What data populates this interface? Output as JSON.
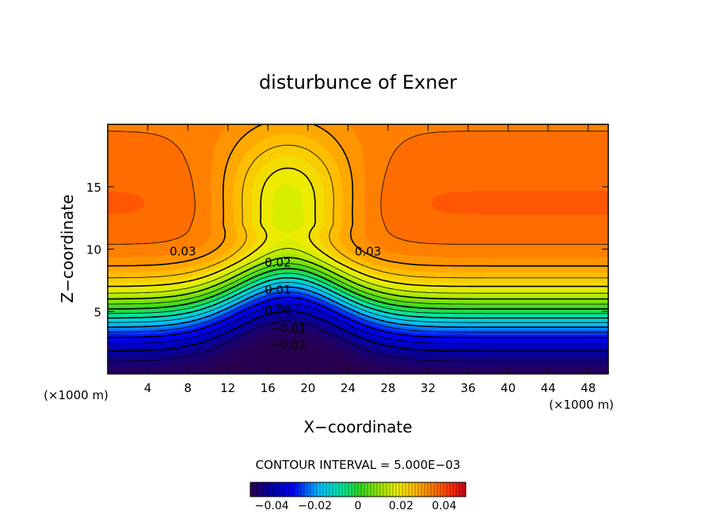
{
  "chart_data": {
    "type": "heatmap",
    "title": "disturbunce of Exner",
    "xlabel": "X−coordinate",
    "ylabel": "Z−coordinate",
    "x_unit": "(×1000 m)",
    "y_unit": "(×1000 m)",
    "xlim": [
      0,
      50
    ],
    "ylim": [
      0,
      20
    ],
    "x_ticks": [
      "4",
      "8",
      "12",
      "16",
      "20",
      "24",
      "28",
      "32",
      "36",
      "40",
      "44",
      "48"
    ],
    "x_tick_values": [
      4,
      8,
      12,
      16,
      20,
      24,
      28,
      32,
      36,
      40,
      44,
      48
    ],
    "y_ticks": [
      "5",
      "10",
      "15"
    ],
    "y_tick_values": [
      5,
      10,
      15
    ],
    "contour_interval_text": "CONTOUR INTERVAL = 5.000E−03",
    "contour_labels": [
      {
        "text": "0.03",
        "x": 7.5,
        "z": 9.5
      },
      {
        "text": "0.03",
        "x": 26.0,
        "z": 9.5
      },
      {
        "text": "0.02",
        "x": 17.0,
        "z": 8.6
      },
      {
        "text": "0.01",
        "x": 17.0,
        "z": 6.4
      },
      {
        "text": "0.00",
        "x": 17.0,
        "z": 4.8
      },
      {
        "text": "−0.01",
        "x": 18.0,
        "z": 3.3
      },
      {
        "text": "−0.02",
        "x": 18.0,
        "z": 2.0
      }
    ],
    "field_range": [
      -0.05,
      0.05
    ],
    "colorbar": {
      "range": [
        -0.05,
        0.05
      ],
      "tick_labels": [
        "−0.04",
        "−0.02",
        "0",
        "0.02",
        "0.04"
      ],
      "tick_values": [
        -0.04,
        -0.02,
        0,
        0.02,
        0.04
      ]
    },
    "grid": false,
    "legend": "bottom-center colorbar"
  }
}
